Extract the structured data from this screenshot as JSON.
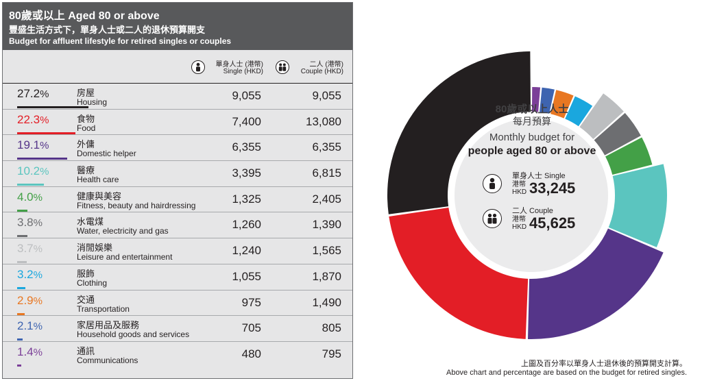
{
  "header": {
    "title": "80歲或以上 Aged 80 or above",
    "subtitle_zh": "豐盛生活方式下，單身人士或二人的退休預算開支",
    "subtitle_en": "Budget for affluent lifestyle for retired singles or couples"
  },
  "columns": {
    "single": {
      "zh": "單身人士 (港幣)",
      "en": "Single (HKD)",
      "icon": "single-person-icon"
    },
    "couple": {
      "zh": "二人 (港幣)",
      "en": "Couple (HKD)",
      "icon": "couple-icon"
    }
  },
  "chart_data": {
    "type": "table",
    "columns": [
      "Percentage",
      "Category (Chinese)",
      "Category (English)",
      "Single (HKD)",
      "Couple (HKD)"
    ],
    "rows": [
      {
        "pct": "27.2",
        "unit": "%",
        "zh": "房屋",
        "en": "Housing",
        "single": "9,055",
        "couple": "9,055",
        "single_value": 9055,
        "couple_value": 9055,
        "color": "#231f20"
      },
      {
        "pct": "22.3",
        "unit": "%",
        "zh": "食物",
        "en": "Food",
        "single": "7,400",
        "couple": "13,080",
        "single_value": 7400,
        "couple_value": 13080,
        "color": "#e31e26"
      },
      {
        "pct": "19.1",
        "unit": "%",
        "zh": "外傭",
        "en": "Domestic helper",
        "single": "6,355",
        "couple": "6,355",
        "single_value": 6355,
        "couple_value": 6355,
        "color": "#553589"
      },
      {
        "pct": "10.2",
        "unit": "%",
        "zh": "醫療",
        "en": "Health care",
        "single": "3,395",
        "couple": "6,815",
        "single_value": 3395,
        "couple_value": 6815,
        "color": "#5bc5bf"
      },
      {
        "pct": "4.0",
        "unit": "%",
        "zh": "健康與美容",
        "en": "Fitness, beauty and hairdressing",
        "single": "1,325",
        "couple": "2,405",
        "single_value": 1325,
        "couple_value": 2405,
        "color": "#43a047"
      },
      {
        "pct": "3.8",
        "unit": "%",
        "zh": "水電煤",
        "en": "Water, electricity and gas",
        "single": "1,260",
        "couple": "1,390",
        "single_value": 1260,
        "couple_value": 1390,
        "color": "#6d6e71"
      },
      {
        "pct": "3.7",
        "unit": "%",
        "zh": "消閒娛樂",
        "en": "Leisure and entertainment",
        "single": "1,240",
        "couple": "1,565",
        "single_value": 1240,
        "couple_value": 1565,
        "color": "#bcbec0"
      },
      {
        "pct": "3.2",
        "unit": "%",
        "zh": "服飾",
        "en": "Clothing",
        "single": "1,055",
        "couple": "1,870",
        "single_value": 1055,
        "couple_value": 1870,
        "color": "#1aa7de"
      },
      {
        "pct": "2.9",
        "unit": "%",
        "zh": "交通",
        "en": "Transportation",
        "single": "975",
        "couple": "1,490",
        "single_value": 975,
        "couple_value": 1490,
        "color": "#e87722"
      },
      {
        "pct": "2.1",
        "unit": "%",
        "zh": "家居用品及服務",
        "en": "Household goods and services",
        "single": "705",
        "couple": "805",
        "single_value": 705,
        "couple_value": 805,
        "color": "#3e64b0"
      },
      {
        "pct": "1.4",
        "unit": "%",
        "zh": "通訊",
        "en": "Communications",
        "single": "480",
        "couple": "795",
        "single_value": 480,
        "couple_value": 795,
        "color": "#7b3f98"
      }
    ]
  },
  "donut": {
    "type": "pie",
    "order_note": "slices clockwise from top, largest last",
    "title_zh_1": "80歲或以上人士",
    "title_zh_2": "每月預算",
    "title_en_1": "Monthly budget for",
    "title_en_2": "people aged 80 or above",
    "single": {
      "label": "單身人士 Single",
      "currency": "港幣 HKD",
      "total": "33,245"
    },
    "couple": {
      "label": "二人 Couple",
      "currency": "港幣 HKD",
      "total": "45,625"
    }
  },
  "footnote": {
    "zh": "上圖及百分率以單身人士退休後的預算開支計算。",
    "en": "Above chart and percentage are based on the budget for retired singles."
  }
}
